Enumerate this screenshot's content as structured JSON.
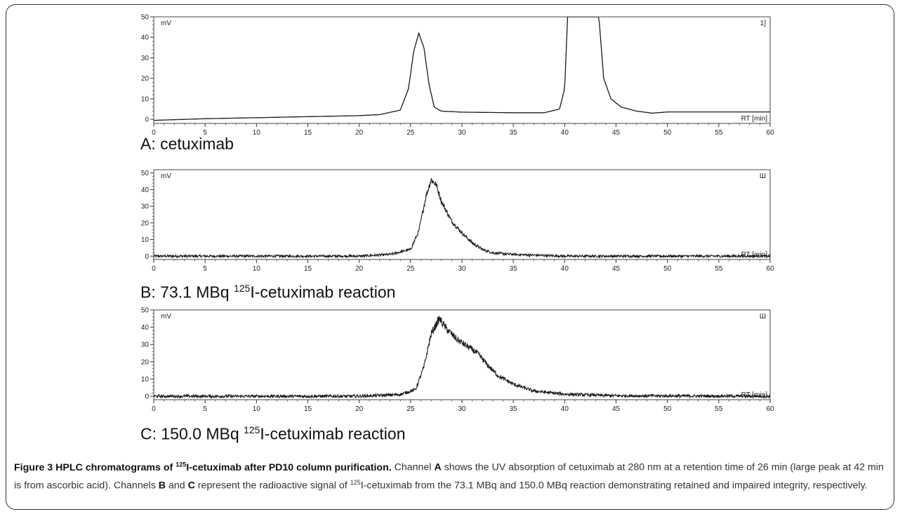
{
  "chart_data": [
    {
      "panel": "A",
      "type": "line",
      "label_prefix": "A: cetuximab",
      "label_sup": "",
      "label_suffix": "",
      "y_unit": "mV",
      "x_unit": "RT [min]",
      "channel": "1]",
      "xlim": [
        0,
        60
      ],
      "ylim": [
        -2,
        50
      ],
      "x_ticks": [
        0,
        5,
        10,
        15,
        20,
        25,
        30,
        35,
        40,
        45,
        50,
        55,
        60
      ],
      "y_ticks": [
        0,
        10,
        20,
        30,
        40,
        50
      ],
      "y_tick_labels": [
        "0",
        "10",
        "20",
        "30",
        "40",
        "50"
      ],
      "noise": 0,
      "x": [
        0,
        5,
        10,
        15,
        20,
        22,
        24,
        24.8,
        25.3,
        25.8,
        26.3,
        26.8,
        27.3,
        28,
        30,
        35,
        38,
        39.5,
        40,
        40.3,
        43.3,
        43.8,
        44.5,
        45.5,
        47,
        48.5,
        50,
        55,
        60
      ],
      "y": [
        -0.5,
        0.3,
        0.8,
        1.3,
        1.8,
        2.3,
        4.5,
        15,
        33,
        42,
        35,
        17,
        6,
        4,
        3.5,
        3.2,
        3.2,
        5,
        15,
        52,
        52,
        20,
        10,
        6,
        4,
        3,
        3.6,
        3.6,
        3.6
      ]
    },
    {
      "panel": "B",
      "type": "line",
      "label_prefix": "B: 73.1 MBq ",
      "label_sup": "125",
      "label_suffix": "I-cetuximab reaction",
      "y_unit": "mV",
      "x_unit": "RT [min]",
      "channel": "Ш",
      "xlim": [
        0,
        60
      ],
      "ylim": [
        -2,
        52
      ],
      "x_ticks": [
        0,
        5,
        10,
        15,
        20,
        25,
        30,
        35,
        40,
        45,
        50,
        55,
        60
      ],
      "y_ticks": [
        0,
        10,
        20,
        30,
        40,
        50
      ],
      "y_tick_labels": [
        "0",
        "10",
        "20",
        "30",
        "40",
        "50"
      ],
      "noise": 1.2,
      "x": [
        0,
        20,
        23,
        25,
        25.8,
        26.5,
        27,
        27.5,
        28,
        29,
        30,
        31,
        32,
        33,
        35,
        40,
        60
      ],
      "y": [
        0,
        0,
        1,
        4,
        15,
        36,
        46,
        43,
        33,
        21,
        14,
        8,
        4,
        2,
        1,
        0,
        0
      ]
    },
    {
      "panel": "C",
      "type": "line",
      "label_prefix": "C: 150.0 MBq ",
      "label_sup": "125",
      "label_suffix": "I-cetuximab reaction",
      "y_unit": "mV",
      "x_unit": "RT [min]",
      "channel": "Ш",
      "xlim": [
        0,
        60
      ],
      "ylim": [
        -2,
        50
      ],
      "x_ticks": [
        0,
        5,
        10,
        15,
        20,
        25,
        30,
        35,
        40,
        45,
        50,
        55,
        60
      ],
      "y_ticks": [
        0,
        10,
        20,
        30,
        40,
        50
      ],
      "y_tick_labels": [
        "0",
        "10",
        "20",
        "30",
        "40",
        "50"
      ],
      "noise": 1.4,
      "x": [
        0,
        20,
        24,
        25.5,
        26.3,
        27,
        27.8,
        28.5,
        29.5,
        30.5,
        31.5,
        32.5,
        33.5,
        35,
        36,
        37,
        40,
        45,
        60
      ],
      "y": [
        0,
        0,
        1,
        4,
        17,
        36,
        45,
        39,
        33,
        29,
        25,
        18,
        12,
        7,
        5,
        3,
        1.2,
        0.3,
        0
      ]
    }
  ],
  "caption": {
    "fig_prefix": "Figure 3 HPLC chromatograms of ",
    "fig_sup": "125",
    "fig_suffix": "I-cetuximab after PD10 column purification.",
    "t1": " Channel ",
    "A": "A",
    "t2": " shows the UV absorption of cetuximab at 280 nm at a retention time of 26 min (large peak at 42 min is from ascorbic acid). Channels ",
    "B": "B",
    "t3": " and ",
    "C": "C",
    "t4": " represent the radioactive signal of ",
    "sup": "125",
    "t5": "I-cetuximab from the 73.1 MBq and 150.0 MBq reaction demonstrating retained and impaired integrity, respectively."
  }
}
